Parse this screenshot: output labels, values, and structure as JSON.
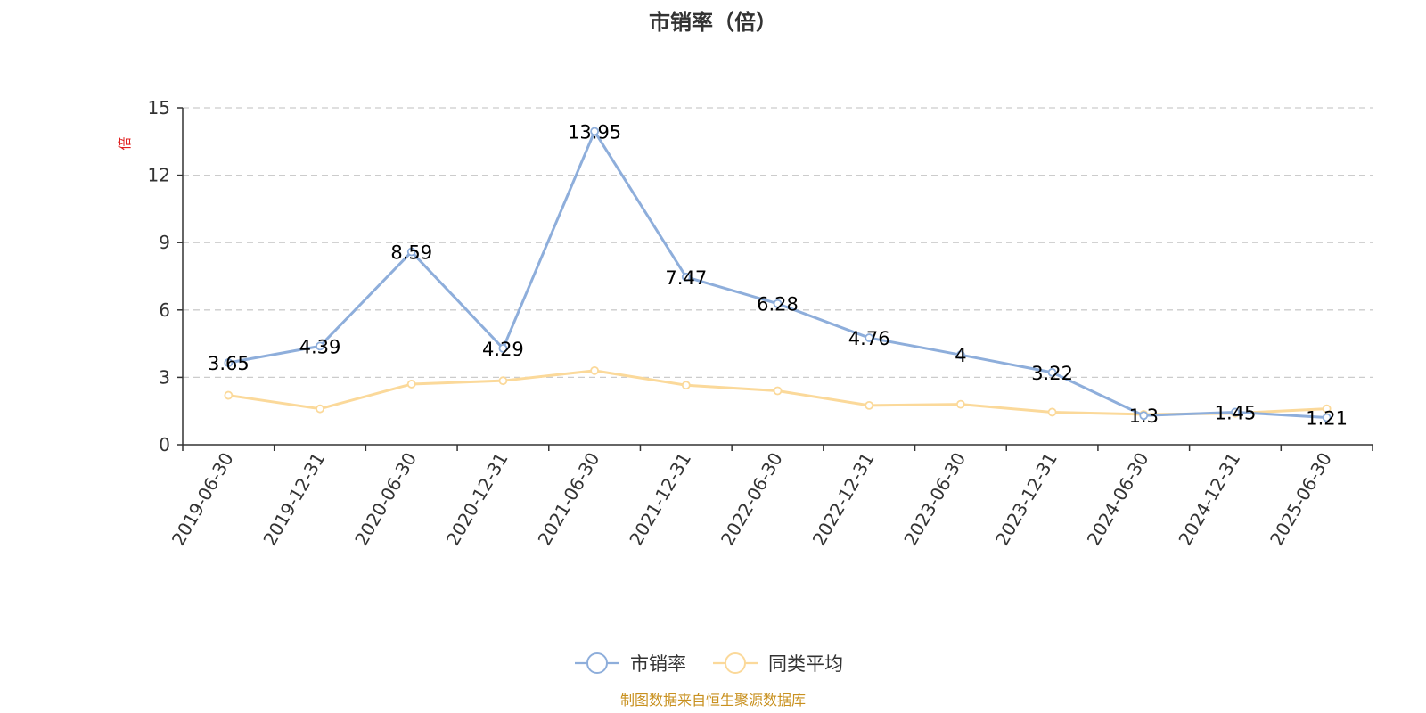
{
  "chart_data": {
    "type": "line",
    "title": "市销率（倍）",
    "ylabel": "倍",
    "xlabel": "",
    "ylim": [
      0,
      15
    ],
    "yticks": [
      0,
      3,
      6,
      9,
      12,
      15
    ],
    "grid": true,
    "legend_position": "bottom-center",
    "categories": [
      "2019-06-30",
      "2019-12-31",
      "2020-06-30",
      "2020-12-31",
      "2021-06-30",
      "2021-12-31",
      "2022-06-30",
      "2022-12-31",
      "2023-06-30",
      "2023-12-31",
      "2024-06-30",
      "2024-12-31",
      "2025-06-30"
    ],
    "series": [
      {
        "name": "市销率",
        "color": "#8eaedb",
        "values": [
          3.65,
          4.39,
          8.59,
          4.29,
          13.95,
          7.47,
          6.28,
          4.76,
          4,
          3.22,
          1.3,
          1.45,
          1.21
        ],
        "labels": [
          "3.65",
          "4.39",
          "8.59",
          "4.29",
          "13.95",
          "7.47",
          "6.28",
          "4.76",
          "4",
          "3.22",
          "1.3",
          "1.45",
          "1.21"
        ]
      },
      {
        "name": "同类平均",
        "color": "#fbd99a",
        "values": [
          2.2,
          1.6,
          2.7,
          2.85,
          3.3,
          2.65,
          2.4,
          1.75,
          1.8,
          1.45,
          1.35,
          1.4,
          1.6
        ]
      }
    ]
  },
  "footer": {
    "source": "制图数据来自恒生聚源数据库"
  }
}
